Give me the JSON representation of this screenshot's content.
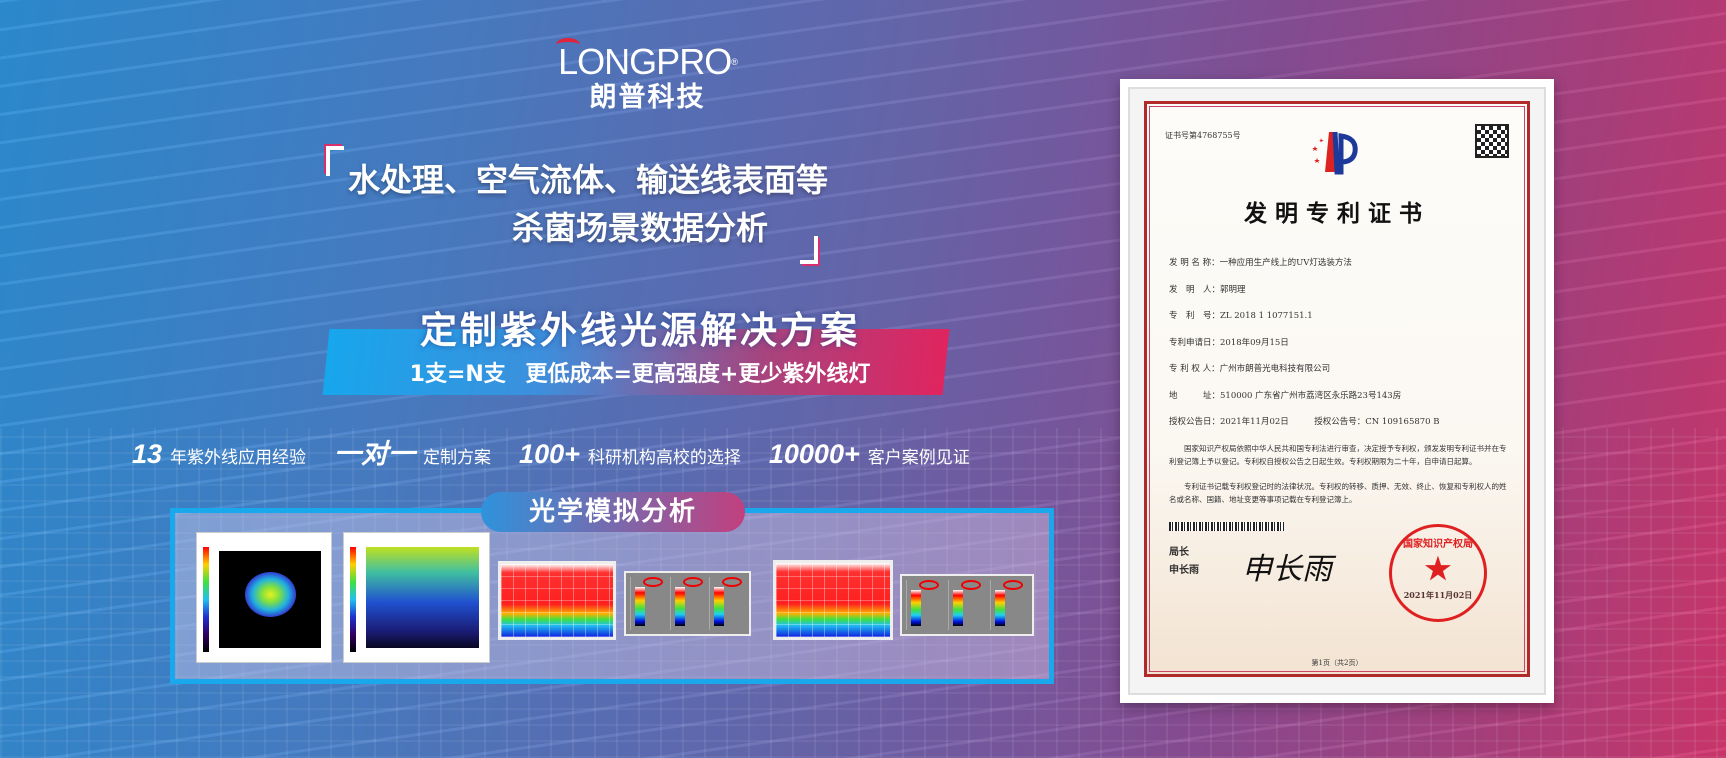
{
  "brand": {
    "name_en": "LONGPRO",
    "registered_mark": "®",
    "name_cn": "朗普科技"
  },
  "headline": {
    "line1": "水处理、空气流体、输送线表面等",
    "line2": "杀菌场景数据分析"
  },
  "solution": {
    "title": "定制紫外线光源解决方案",
    "subtitle": "1支=N支   更低成本=更高强度+更少紫外线灯"
  },
  "stats": [
    {
      "value": "13",
      "label": "年紫外线应用经验"
    },
    {
      "value": "一对一",
      "label": "定制方案"
    },
    {
      "value": "100+",
      "label": "科研机构高校的选择"
    },
    {
      "value": "10000+",
      "label": "客户案例见证"
    }
  ],
  "simulation": {
    "title": "光学模拟分析"
  },
  "certificate": {
    "number": "证书号第4768755号",
    "title": "发明专利证书",
    "fields": [
      "发 明 名 称：一种应用生产线上的UV灯选装方法",
      "发　明　人：郭明理",
      "专　利　号：ZL 2018 1 1077151.1",
      "专利申请日：2018年09月15日",
      "专 利 权 人：广州市朗普光电科技有限公司",
      "地　　　址：510000 广东省广州市荔湾区永乐路23号143房",
      "授权公告日：2021年11月02日　　　授权公告号：CN 109165870 B"
    ],
    "para1": "国家知识产权局依照中华人民共和国专利法进行审查，决定授予专利权，颁发发明专利证书并在专利登记簿上予以登记。专利权自授权公告之日起生效。专利权期限为二十年，自申请日起算。",
    "para2": "专利证书记载专利权登记时的法律状况。专利权的转移、质押、无效、终止、恢复和专利权人的姓名或名称、国籍、地址变更等事项记载在专利登记簿上。",
    "signer_title": "局长",
    "signer_name": "申长雨",
    "seal_text": "国家知识产权局",
    "seal_date": "2021年11月02日",
    "page": "第1页（共2页）"
  },
  "colors": {
    "accent_blue": "#1aa8ec",
    "accent_pink": "#e0245f",
    "logo_red": "#e0243c"
  }
}
